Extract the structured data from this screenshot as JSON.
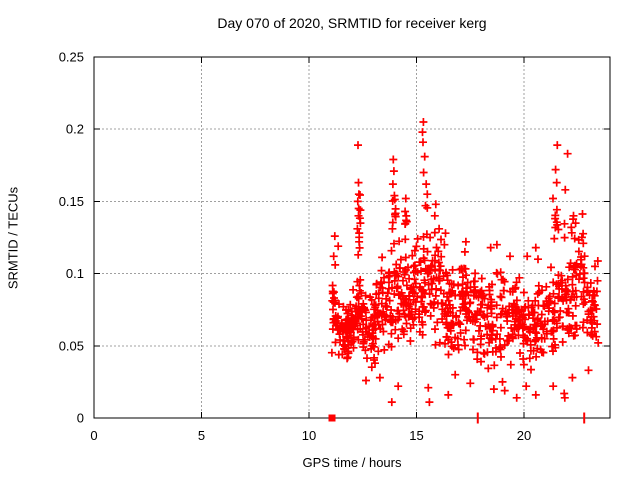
{
  "chart_data": {
    "type": "scatter",
    "title": "Day 070 of 2020, SRMTID for receiver kerg",
    "xlabel": "GPS time / hours",
    "ylabel": "SRMTID / TECUs",
    "xlim": [
      0,
      24
    ],
    "ylim": [
      0,
      0.25
    ],
    "x_ticks": [
      0,
      5,
      10,
      15,
      20
    ],
    "x_tick_labels": [
      "0",
      "5",
      "10",
      "15",
      "20"
    ],
    "y_ticks": [
      0,
      0.05,
      0.1,
      0.15,
      0.2,
      0.25
    ],
    "y_tick_labels": [
      "0",
      "0.05",
      "0.1",
      "0.15",
      "0.2",
      "0.25"
    ],
    "grid": true,
    "legend": "none",
    "marker": "plus",
    "colors": {
      "marker": "#ff0000",
      "grid": "#a0a0a0",
      "axis": "#000000",
      "text": "#000000",
      "background": "#ffffff"
    },
    "data_span_hours": [
      11.05,
      23.45
    ],
    "axis_markers": {
      "filled_square_x": [
        11.07
      ],
      "vertical_tick_x": [
        17.85,
        22.8
      ]
    },
    "points": [
      [
        11.36,
        0.119
      ],
      [
        11.2,
        0.126
      ],
      [
        11.15,
        0.112
      ],
      [
        11.22,
        0.106
      ],
      [
        12.28,
        0.189
      ],
      [
        12.3,
        0.163
      ],
      [
        12.32,
        0.155
      ],
      [
        12.27,
        0.15
      ],
      [
        12.3,
        0.14
      ],
      [
        12.25,
        0.131
      ],
      [
        12.33,
        0.122
      ],
      [
        12.29,
        0.113
      ],
      [
        13.92,
        0.179
      ],
      [
        13.95,
        0.171
      ],
      [
        13.9,
        0.162
      ],
      [
        13.97,
        0.154
      ],
      [
        14.0,
        0.141
      ],
      [
        13.88,
        0.131
      ],
      [
        14.5,
        0.152
      ],
      [
        14.47,
        0.143
      ],
      [
        14.55,
        0.136
      ],
      [
        15.32,
        0.205
      ],
      [
        15.28,
        0.198
      ],
      [
        15.3,
        0.191
      ],
      [
        15.38,
        0.181
      ],
      [
        15.33,
        0.17
      ],
      [
        15.45,
        0.162
      ],
      [
        15.5,
        0.155
      ],
      [
        15.42,
        0.147
      ],
      [
        15.9,
        0.148
      ],
      [
        15.85,
        0.14
      ],
      [
        16.05,
        0.131
      ],
      [
        16.35,
        0.128
      ],
      [
        16.3,
        0.12
      ],
      [
        17.3,
        0.122
      ],
      [
        17.25,
        0.115
      ],
      [
        18.45,
        0.118
      ],
      [
        18.74,
        0.12
      ],
      [
        19.35,
        0.112
      ],
      [
        20.15,
        0.112
      ],
      [
        20.55,
        0.118
      ],
      [
        20.65,
        0.11
      ],
      [
        21.35,
        0.152
      ],
      [
        21.55,
        0.189
      ],
      [
        21.47,
        0.172
      ],
      [
        21.52,
        0.163
      ],
      [
        22.03,
        0.183
      ],
      [
        21.92,
        0.158
      ],
      [
        22.2,
        0.132
      ],
      [
        22.3,
        0.14
      ],
      [
        22.4,
        0.135
      ],
      [
        22.76,
        0.121
      ],
      [
        23.3,
        0.105
      ],
      [
        23.42,
        0.095
      ],
      [
        23.4,
        0.065
      ],
      [
        23.45,
        0.052
      ],
      [
        13.85,
        0.011
      ],
      [
        15.6,
        0.011
      ],
      [
        21.9,
        0.014
      ],
      [
        19.66,
        0.014
      ],
      [
        20.55,
        0.016
      ],
      [
        16.48,
        0.016
      ],
      [
        21.87,
        0.017
      ],
      [
        19.1,
        0.019
      ],
      [
        18.6,
        0.02
      ],
      [
        15.55,
        0.021
      ],
      [
        14.15,
        0.022
      ],
      [
        21.36,
        0.022
      ],
      [
        20.1,
        0.022
      ],
      [
        17.5,
        0.024
      ],
      [
        19.0,
        0.025
      ],
      [
        12.65,
        0.026
      ],
      [
        13.3,
        0.028
      ],
      [
        22.25,
        0.028
      ],
      [
        16.8,
        0.03
      ],
      [
        23.0,
        0.033
      ]
    ],
    "density_bands": [
      [
        11.05,
        11.25,
        0.033,
        0.105,
        16
      ],
      [
        11.2,
        11.6,
        0.038,
        0.085,
        22
      ],
      [
        11.6,
        12.1,
        0.035,
        0.08,
        45
      ],
      [
        11.7,
        12.0,
        0.05,
        0.078,
        20
      ],
      [
        12.1,
        12.45,
        0.045,
        0.1,
        25
      ],
      [
        12.3,
        12.4,
        0.1,
        0.165,
        8
      ],
      [
        12.45,
        13.1,
        0.032,
        0.095,
        50
      ],
      [
        13.1,
        13.65,
        0.04,
        0.115,
        35
      ],
      [
        13.65,
        14.2,
        0.042,
        0.125,
        40
      ],
      [
        13.88,
        14.05,
        0.125,
        0.16,
        7
      ],
      [
        14.2,
        14.8,
        0.05,
        0.12,
        42
      ],
      [
        14.45,
        14.6,
        0.12,
        0.15,
        5
      ],
      [
        14.8,
        15.3,
        0.05,
        0.13,
        38
      ],
      [
        15.3,
        15.55,
        0.06,
        0.15,
        18
      ],
      [
        15.55,
        16.2,
        0.05,
        0.135,
        42
      ],
      [
        16.2,
        17.0,
        0.04,
        0.115,
        52
      ],
      [
        17.0,
        17.6,
        0.045,
        0.115,
        40
      ],
      [
        17.6,
        18.2,
        0.035,
        0.108,
        42
      ],
      [
        18.2,
        19.0,
        0.032,
        0.105,
        50
      ],
      [
        19.0,
        19.7,
        0.035,
        0.105,
        42
      ],
      [
        19.7,
        20.4,
        0.03,
        0.1,
        42
      ],
      [
        20.4,
        21.0,
        0.028,
        0.095,
        40
      ],
      [
        21.0,
        21.7,
        0.04,
        0.11,
        42
      ],
      [
        21.4,
        22.1,
        0.1,
        0.155,
        10
      ],
      [
        21.7,
        22.2,
        0.04,
        0.125,
        30
      ],
      [
        22.2,
        22.9,
        0.05,
        0.145,
        45
      ],
      [
        22.9,
        23.45,
        0.04,
        0.115,
        30
      ],
      [
        11.6,
        23.3,
        0.05,
        0.09,
        60
      ]
    ],
    "band_seed": 20200070
  }
}
